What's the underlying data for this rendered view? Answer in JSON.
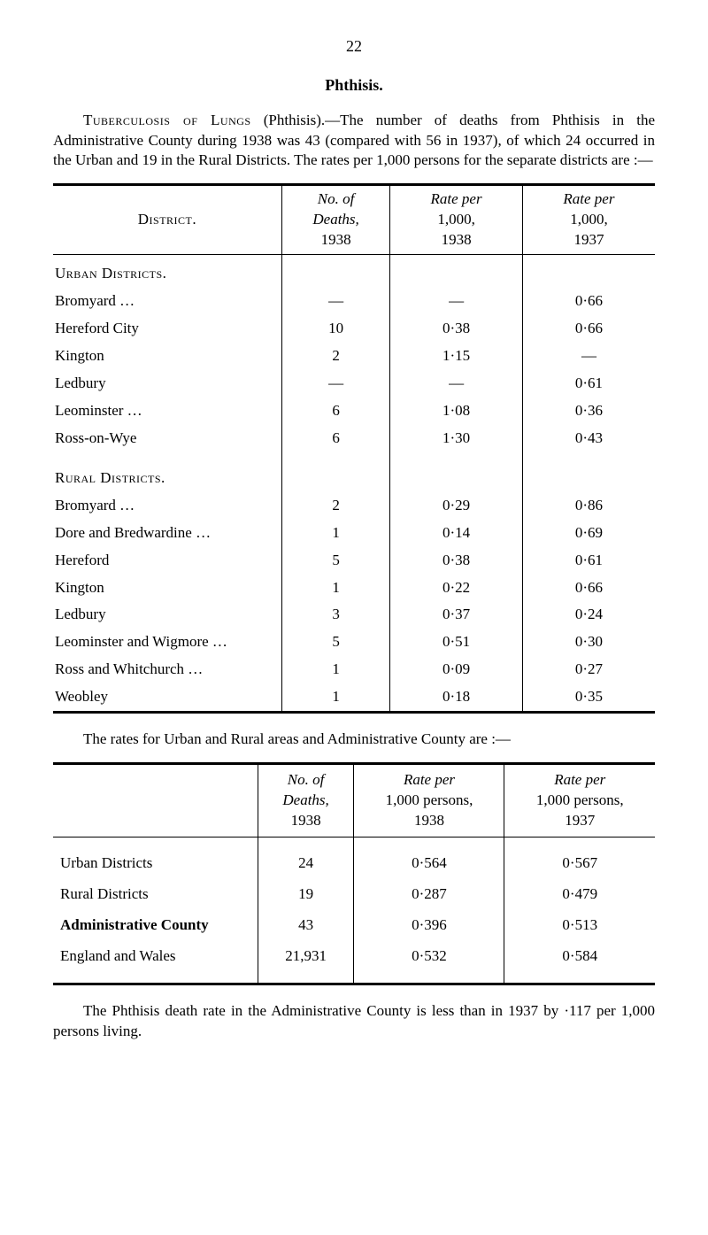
{
  "page_number": "22",
  "title": "Phthisis.",
  "intro": "Tuberculosis of Lungs (Phthisis).—The number of deaths from Phthisis in the Administrative County during 1938 was 43 (compared with 56 in 1937), of which 24 occurred in the Urban and 19 in the Rural Districts. The rates per 1,000 persons for the separate districts are :—",
  "intro_sc": "Tuberculosis of Lungs",
  "intro_rest": " (Phthisis).—The number of deaths from Phthisis in the Administrative County during 1938 was 43 (compared with 56 in 1937), of which 24 occurred in the Urban and 19 in the Rural Districts. The rates per 1,000 persons for the separate districts are :—",
  "table1": {
    "headers": {
      "district": "District.",
      "deaths_l1": "No. of",
      "deaths_l2": "Deaths,",
      "deaths_l3": "1938",
      "rate1_l1": "Rate per",
      "rate1_l2": "1,000,",
      "rate1_l3": "1938",
      "rate2_l1": "Rate per",
      "rate2_l2": "1,000,",
      "rate2_l3": "1937"
    },
    "urban_label": "Urban Districts.",
    "rural_label": "Rural Districts.",
    "urban": [
      {
        "name": "Bromyard …",
        "deaths": "—",
        "rate1": "—",
        "rate2": "0·66"
      },
      {
        "name": "Hereford City",
        "deaths": "10",
        "rate1": "0·38",
        "rate2": "0·66"
      },
      {
        "name": "Kington",
        "deaths": "2",
        "rate1": "1·15",
        "rate2": "—"
      },
      {
        "name": "Ledbury",
        "deaths": "—",
        "rate1": "—",
        "rate2": "0·61"
      },
      {
        "name": "Leominster …",
        "deaths": "6",
        "rate1": "1·08",
        "rate2": "0·36"
      },
      {
        "name": "Ross-on-Wye",
        "deaths": "6",
        "rate1": "1·30",
        "rate2": "0·43"
      }
    ],
    "rural": [
      {
        "name": "Bromyard …",
        "deaths": "2",
        "rate1": "0·29",
        "rate2": "0·86"
      },
      {
        "name": "Dore and Bredwardine …",
        "deaths": "1",
        "rate1": "0·14",
        "rate2": "0·69"
      },
      {
        "name": "Hereford",
        "deaths": "5",
        "rate1": "0·38",
        "rate2": "0·61"
      },
      {
        "name": "Kington",
        "deaths": "1",
        "rate1": "0·22",
        "rate2": "0·66"
      },
      {
        "name": "Ledbury",
        "deaths": "3",
        "rate1": "0·37",
        "rate2": "0·24"
      },
      {
        "name": "Leominster and Wigmore …",
        "deaths": "5",
        "rate1": "0·51",
        "rate2": "0·30"
      },
      {
        "name": "Ross and Whitchurch …",
        "deaths": "1",
        "rate1": "0·09",
        "rate2": "0·27"
      },
      {
        "name": "Weobley",
        "deaths": "1",
        "rate1": "0·18",
        "rate2": "0·35"
      }
    ]
  },
  "mid_text": "The rates for Urban and Rural areas and Administrative County are :—",
  "table2": {
    "headers": {
      "c1_l1": "No. of",
      "c1_l2": "Deaths,",
      "c1_l3": "1938",
      "c2_l1": "Rate per",
      "c2_l2": "1,000 persons,",
      "c2_l3": "1938",
      "c3_l1": "Rate per",
      "c3_l2": "1,000 persons,",
      "c3_l3": "1937"
    },
    "rows": [
      {
        "name": "Urban Districts",
        "deaths": "24",
        "rate1": "0·564",
        "rate2": "0·567",
        "bold": false
      },
      {
        "name": "Rural Districts",
        "deaths": "19",
        "rate1": "0·287",
        "rate2": "0·479",
        "bold": false
      },
      {
        "name": "Administrative County",
        "deaths": "43",
        "rate1": "0·396",
        "rate2": "0·513",
        "bold": true
      },
      {
        "name": "England and Wales",
        "deaths": "21,931",
        "rate1": "0·532",
        "rate2": "0·584",
        "bold": false
      }
    ]
  },
  "footer": "The Phthisis death rate in the Administrative County is less than in 1937 by ·117 per 1,000 persons living."
}
